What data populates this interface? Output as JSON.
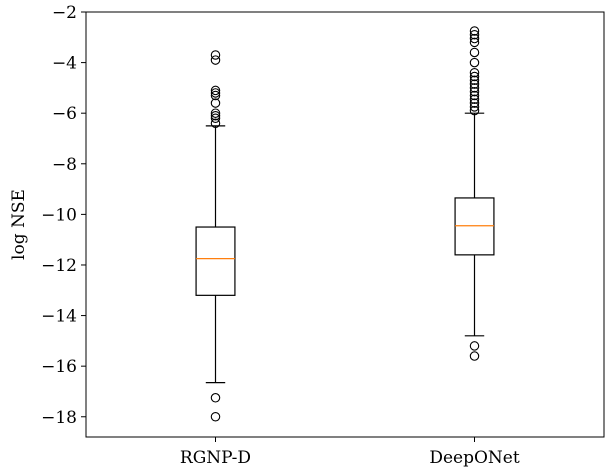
{
  "chart_data": {
    "type": "box",
    "title": "",
    "xlabel": "",
    "ylabel": "log NSE",
    "ylim": [
      -18.8,
      -2
    ],
    "yticks": [
      -18,
      -16,
      -14,
      -12,
      -10,
      -8,
      -6,
      -4,
      -2
    ],
    "ytick_labels": [
      "−18",
      "−16",
      "−14",
      "−12",
      "−10",
      "−8",
      "−6",
      "−4",
      "−2"
    ],
    "categories": [
      "RGNP-D",
      "DeepONet"
    ],
    "boxes": [
      {
        "label": "RGNP-D",
        "whisker_low": -16.65,
        "q1": -13.2,
        "median": -11.75,
        "q3": -10.5,
        "whisker_high": -6.5,
        "outliers": [
          -3.7,
          -3.9,
          -5.1,
          -5.2,
          -5.3,
          -5.6,
          -6.0,
          -6.1,
          -6.2,
          -6.4,
          -17.25,
          -18.0
        ]
      },
      {
        "label": "DeepONet",
        "whisker_low": -14.8,
        "q1": -11.6,
        "median": -10.45,
        "q3": -9.35,
        "whisker_high": -6.0,
        "outliers": [
          -2.75,
          -2.9,
          -3.05,
          -3.2,
          -3.6,
          -4.0,
          -4.4,
          -4.55,
          -4.7,
          -4.85,
          -5.0,
          -5.15,
          -5.3,
          -5.45,
          -5.6,
          -5.75,
          -5.9,
          -15.2,
          -15.6
        ]
      }
    ],
    "colors": {
      "box": "#000000",
      "median": "#ff7f0e",
      "outlier": "#000000"
    },
    "grid": false
  }
}
